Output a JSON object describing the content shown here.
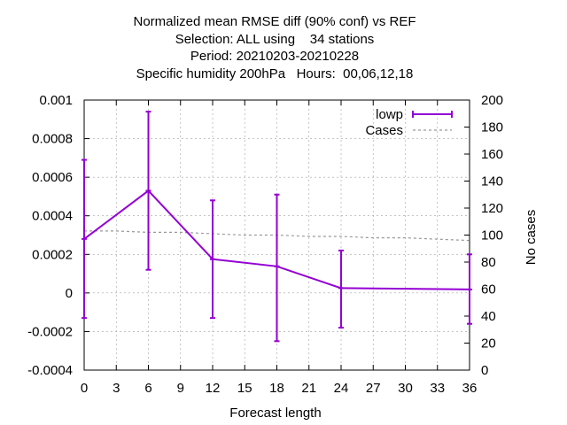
{
  "chart_data": {
    "type": "line",
    "title_lines": [
      "Normalized mean RMSE diff (90% conf) vs REF",
      "Selection: ALL using    34 stations",
      "Period: 20210203-20210228",
      "Specific humidity 200hPa   Hours:  00,06,12,18"
    ],
    "xlabel": "Forecast length",
    "y2label": "No cases",
    "xlim": [
      0,
      36
    ],
    "ylim": [
      -0.0004,
      0.001
    ],
    "y2lim": [
      0,
      200
    ],
    "x_ticks": [
      "0",
      "3",
      "6",
      "9",
      "12",
      "15",
      "18",
      "21",
      "24",
      "27",
      "30",
      "33",
      "36"
    ],
    "y_ticks": [
      "-0.0004",
      "-0.0002",
      "0",
      "0.0002",
      "0.0004",
      "0.0006",
      "0.0008",
      "0.001"
    ],
    "y2_ticks": [
      "0",
      "20",
      "40",
      "60",
      "80",
      "100",
      "120",
      "140",
      "160",
      "180",
      "200"
    ],
    "grid": true,
    "legend_position": "top-right",
    "series": [
      {
        "name": "lowp",
        "color": "#9400d3",
        "axis": "y1",
        "style": "errorbars",
        "x": [
          0,
          6,
          12,
          18,
          24,
          36
        ],
        "y": [
          0.00028,
          0.00053,
          0.000175,
          0.000138,
          2.5e-05,
          1.8e-05
        ],
        "err_low": [
          -0.00013,
          0.00012,
          -0.00013,
          -0.00025,
          -0.00018,
          -0.00016
        ],
        "err_high": [
          0.00069,
          0.00094,
          0.00048,
          0.00051,
          0.00022,
          0.0002
        ]
      },
      {
        "name": "Cases",
        "color": "#999999",
        "axis": "y2",
        "style": "dashed",
        "x": [
          0,
          3,
          6,
          9,
          12,
          15,
          18,
          21,
          24,
          27,
          30,
          33,
          36
        ],
        "y": [
          103,
          103,
          102,
          102,
          101,
          100,
          100,
          99,
          99,
          98,
          98,
          97,
          96
        ]
      }
    ]
  }
}
